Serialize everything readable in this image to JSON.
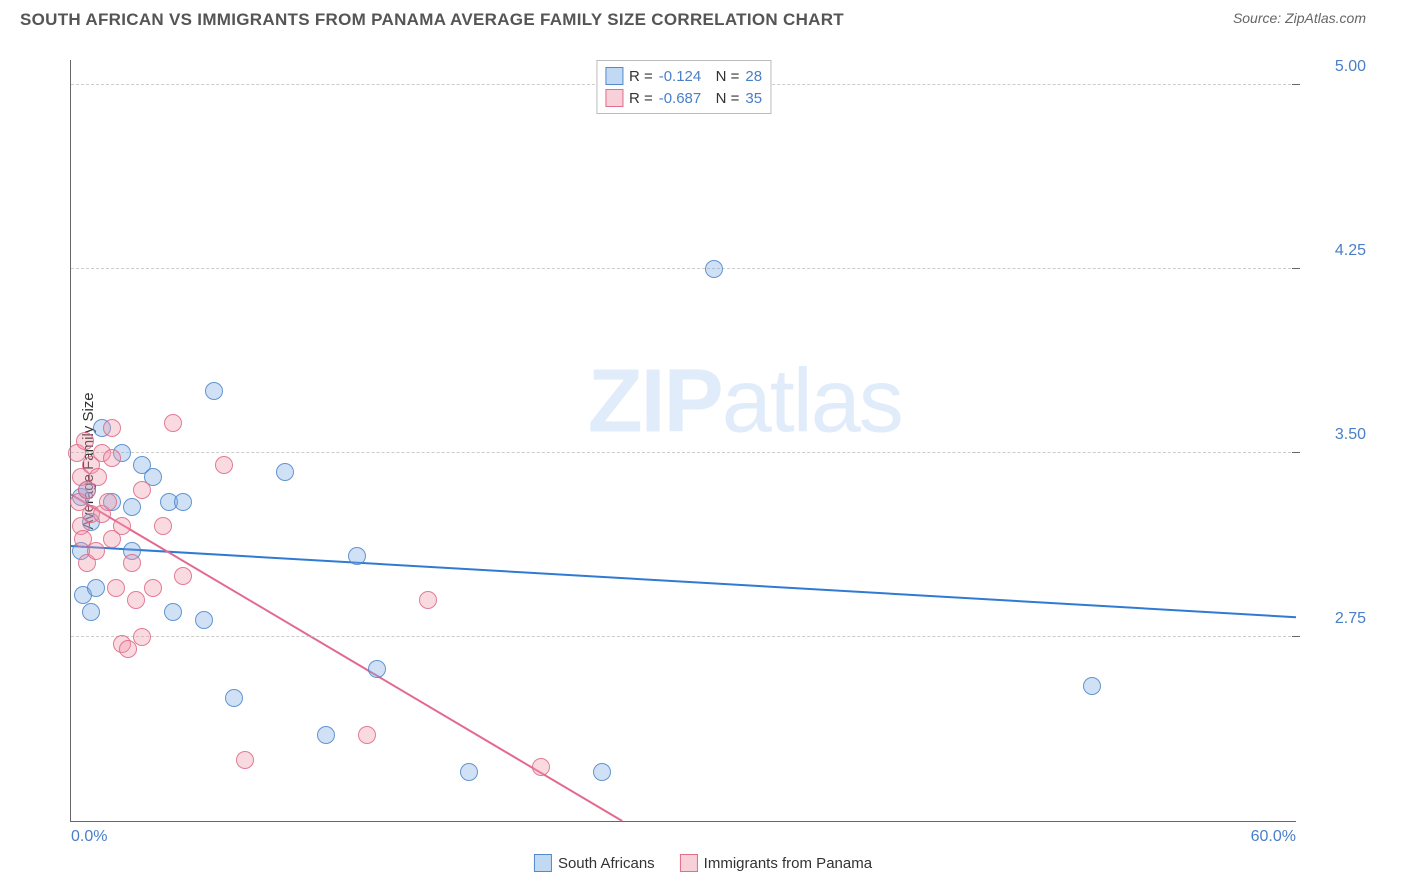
{
  "header": {
    "title": "SOUTH AFRICAN VS IMMIGRANTS FROM PANAMA AVERAGE FAMILY SIZE CORRELATION CHART",
    "source_label": "Source: ",
    "source_name": "ZipAtlas.com"
  },
  "watermark": {
    "part1": "ZIP",
    "part2": "atlas"
  },
  "chart": {
    "type": "scatter",
    "ylabel": "Average Family Size",
    "xlim": [
      0,
      60
    ],
    "ylim": [
      2.0,
      5.1
    ],
    "xticks": [
      {
        "value": 0,
        "label": "0.0%"
      },
      {
        "value": 60,
        "label": "60.0%"
      }
    ],
    "yticks": [
      {
        "value": 2.75,
        "label": "2.75"
      },
      {
        "value": 3.5,
        "label": "3.50"
      },
      {
        "value": 4.25,
        "label": "4.25"
      },
      {
        "value": 5.0,
        "label": "5.00"
      }
    ],
    "grid_color": "#cccccc",
    "axis_color": "#666666",
    "background_color": "#ffffff",
    "tick_label_color": "#4a7ec7",
    "series": [
      {
        "name": "South Africans",
        "color_fill": "rgba(120,170,230,0.35)",
        "color_stroke": "rgba(70,130,200,0.8)",
        "line_color": "#2f7bd4",
        "r_value": "-0.124",
        "n_value": "28",
        "trend": {
          "x1": 0,
          "y1": 3.12,
          "x2": 60,
          "y2": 2.83
        },
        "points": [
          {
            "x": 0.5,
            "y": 3.1
          },
          {
            "x": 0.5,
            "y": 3.32
          },
          {
            "x": 0.6,
            "y": 2.92
          },
          {
            "x": 0.8,
            "y": 3.35
          },
          {
            "x": 1.0,
            "y": 3.22
          },
          {
            "x": 1.2,
            "y": 2.95
          },
          {
            "x": 1.0,
            "y": 2.85
          },
          {
            "x": 1.5,
            "y": 3.6
          },
          {
            "x": 2.0,
            "y": 3.3
          },
          {
            "x": 2.5,
            "y": 3.5
          },
          {
            "x": 3.0,
            "y": 3.1
          },
          {
            "x": 3.0,
            "y": 3.28
          },
          {
            "x": 3.5,
            "y": 3.45
          },
          {
            "x": 4.0,
            "y": 3.4
          },
          {
            "x": 4.8,
            "y": 3.3
          },
          {
            "x": 5.0,
            "y": 2.85
          },
          {
            "x": 5.5,
            "y": 3.3
          },
          {
            "x": 6.5,
            "y": 2.82
          },
          {
            "x": 7.0,
            "y": 3.75
          },
          {
            "x": 8.0,
            "y": 2.5
          },
          {
            "x": 10.5,
            "y": 3.42
          },
          {
            "x": 12.5,
            "y": 2.35
          },
          {
            "x": 14.0,
            "y": 3.08
          },
          {
            "x": 15.0,
            "y": 2.62
          },
          {
            "x": 19.5,
            "y": 2.2
          },
          {
            "x": 26.0,
            "y": 2.2
          },
          {
            "x": 31.5,
            "y": 4.25
          },
          {
            "x": 50.0,
            "y": 2.55
          }
        ]
      },
      {
        "name": "Immigrants from Panama",
        "color_fill": "rgba(240,150,170,0.35)",
        "color_stroke": "rgba(220,100,130,0.8)",
        "line_color": "#e36a8f",
        "r_value": "-0.687",
        "n_value": "35",
        "trend": {
          "x1": 0,
          "y1": 3.33,
          "x2": 27,
          "y2": 2.0
        },
        "points": [
          {
            "x": 0.3,
            "y": 3.5
          },
          {
            "x": 0.4,
            "y": 3.3
          },
          {
            "x": 0.5,
            "y": 3.2
          },
          {
            "x": 0.5,
            "y": 3.4
          },
          {
            "x": 0.6,
            "y": 3.15
          },
          {
            "x": 0.7,
            "y": 3.55
          },
          {
            "x": 0.8,
            "y": 3.35
          },
          {
            "x": 0.8,
            "y": 3.05
          },
          {
            "x": 1.0,
            "y": 3.45
          },
          {
            "x": 1.0,
            "y": 3.25
          },
          {
            "x": 1.2,
            "y": 3.1
          },
          {
            "x": 1.3,
            "y": 3.4
          },
          {
            "x": 1.5,
            "y": 3.5
          },
          {
            "x": 1.5,
            "y": 3.25
          },
          {
            "x": 1.8,
            "y": 3.3
          },
          {
            "x": 2.0,
            "y": 3.15
          },
          {
            "x": 2.0,
            "y": 3.48
          },
          {
            "x": 2.2,
            "y": 2.95
          },
          {
            "x": 2.5,
            "y": 3.2
          },
          {
            "x": 2.5,
            "y": 2.72
          },
          {
            "x": 2.8,
            "y": 2.7
          },
          {
            "x": 3.0,
            "y": 3.05
          },
          {
            "x": 3.2,
            "y": 2.9
          },
          {
            "x": 3.5,
            "y": 3.35
          },
          {
            "x": 3.5,
            "y": 2.75
          },
          {
            "x": 4.0,
            "y": 2.95
          },
          {
            "x": 4.5,
            "y": 3.2
          },
          {
            "x": 5.0,
            "y": 3.62
          },
          {
            "x": 5.5,
            "y": 3.0
          },
          {
            "x": 7.5,
            "y": 3.45
          },
          {
            "x": 8.5,
            "y": 2.25
          },
          {
            "x": 14.5,
            "y": 2.35
          },
          {
            "x": 17.5,
            "y": 2.9
          },
          {
            "x": 23.0,
            "y": 2.22
          },
          {
            "x": 2.0,
            "y": 3.6
          }
        ]
      }
    ],
    "legend_bottom": [
      {
        "key": "south_africans",
        "label": "South Africans",
        "swatch": "blue"
      },
      {
        "key": "immigrants_panama",
        "label": "Immigrants from Panama",
        "swatch": "pink"
      }
    ]
  }
}
